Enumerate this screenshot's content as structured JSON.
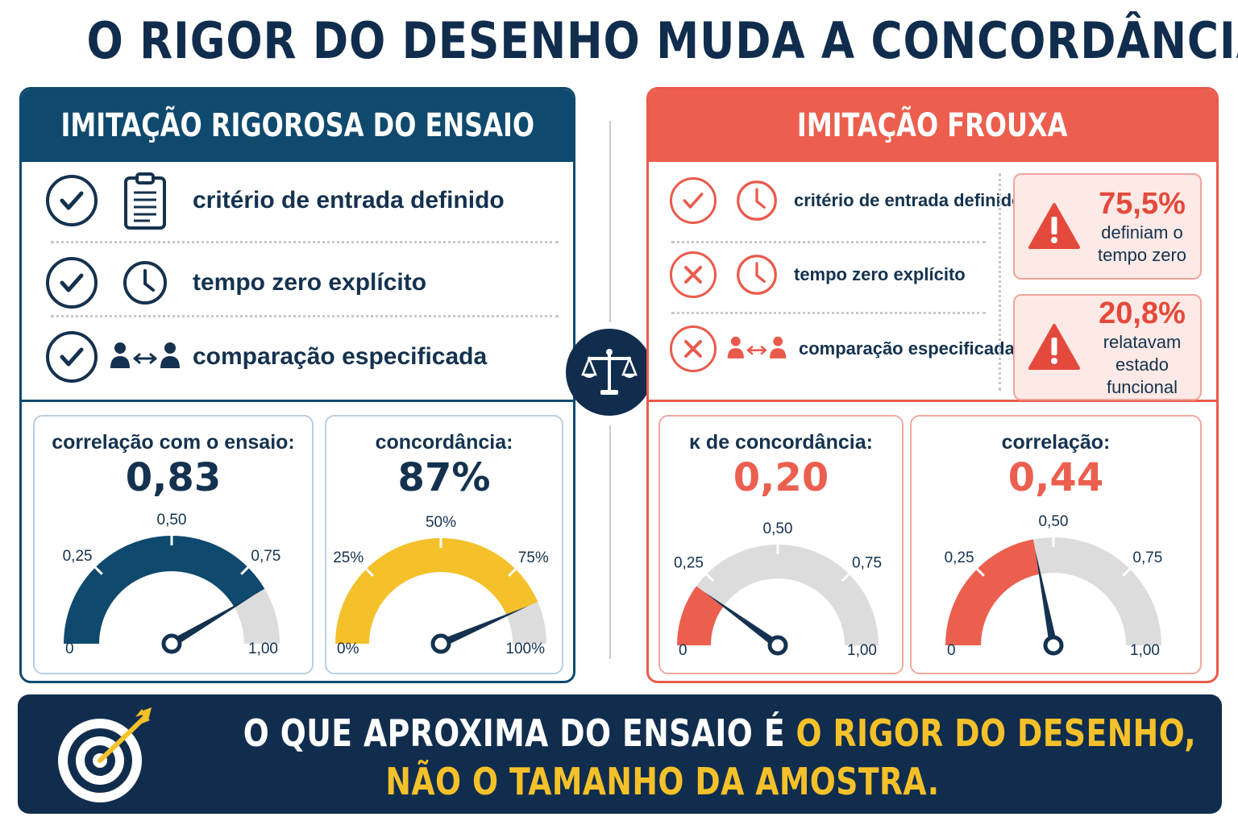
{
  "title": "O RIGOR DO DESENHO MUDA A CONCORDÂNCIA",
  "colors": {
    "navy": "#112d4e",
    "teal_navy": "#0f4a6e",
    "red": "#ec5f4f",
    "yellow": "#f5c12a",
    "gray": "#dcdcdc"
  },
  "left": {
    "header": "IMITAÇÃO RIGOROSA DO ENSAIO",
    "criteria": [
      {
        "status": "check",
        "icon": "clipboard-icon",
        "label": "critério de entrada definido"
      },
      {
        "status": "check",
        "icon": "clock-icon",
        "label": "tempo zero explícito"
      },
      {
        "status": "check",
        "icon": "people-compare-icon",
        "label": "comparação especificada"
      }
    ],
    "gauges": [
      {
        "caption": "correlação com o ensaio:",
        "value_label": "0,83",
        "value": 0.83,
        "ticks": [
          "0",
          "0,25",
          "0,50",
          "0,75",
          "1,00"
        ],
        "fill_color": "#0f4a6e"
      },
      {
        "caption": "concordância:",
        "value_label": "87%",
        "value": 0.87,
        "ticks": [
          "0%",
          "25%",
          "50%",
          "75%",
          "100%"
        ],
        "fill_color": "#f5c12a"
      }
    ]
  },
  "right": {
    "header": "IMITAÇÃO FROUXA",
    "criteria": [
      {
        "status": "check",
        "icon": "clock-icon",
        "label": "critério de entrada definido"
      },
      {
        "status": "cross",
        "icon": "clock-icon",
        "label": "tempo zero explícito"
      },
      {
        "status": "cross",
        "icon": "people-compare-icon",
        "label": "comparação especificada"
      }
    ],
    "stats": [
      {
        "pct": "75,5%",
        "line1": "definiam o",
        "line2": "tempo zero"
      },
      {
        "pct": "20,8%",
        "line1": "relatavam",
        "line2": "estado funcional"
      }
    ],
    "gauges": [
      {
        "caption": "κ de concordância:",
        "value_label": "0,20",
        "value": 0.2,
        "ticks": [
          "0",
          "0,25",
          "0,50",
          "0,75",
          "1,00"
        ],
        "fill_color": "#ec5f4f"
      },
      {
        "caption": "correlação:",
        "value_label": "0,44",
        "value": 0.44,
        "ticks": [
          "0",
          "0,25",
          "0,50",
          "0,75",
          "1,00"
        ],
        "fill_color": "#ec5f4f"
      }
    ]
  },
  "banner": {
    "line1_white": "O QUE APROXIMA DO ENSAIO É ",
    "line1_yellow": "O RIGOR DO DESENHO,",
    "line2_yellow": "NÃO O TAMANHO DA AMOSTRA."
  }
}
